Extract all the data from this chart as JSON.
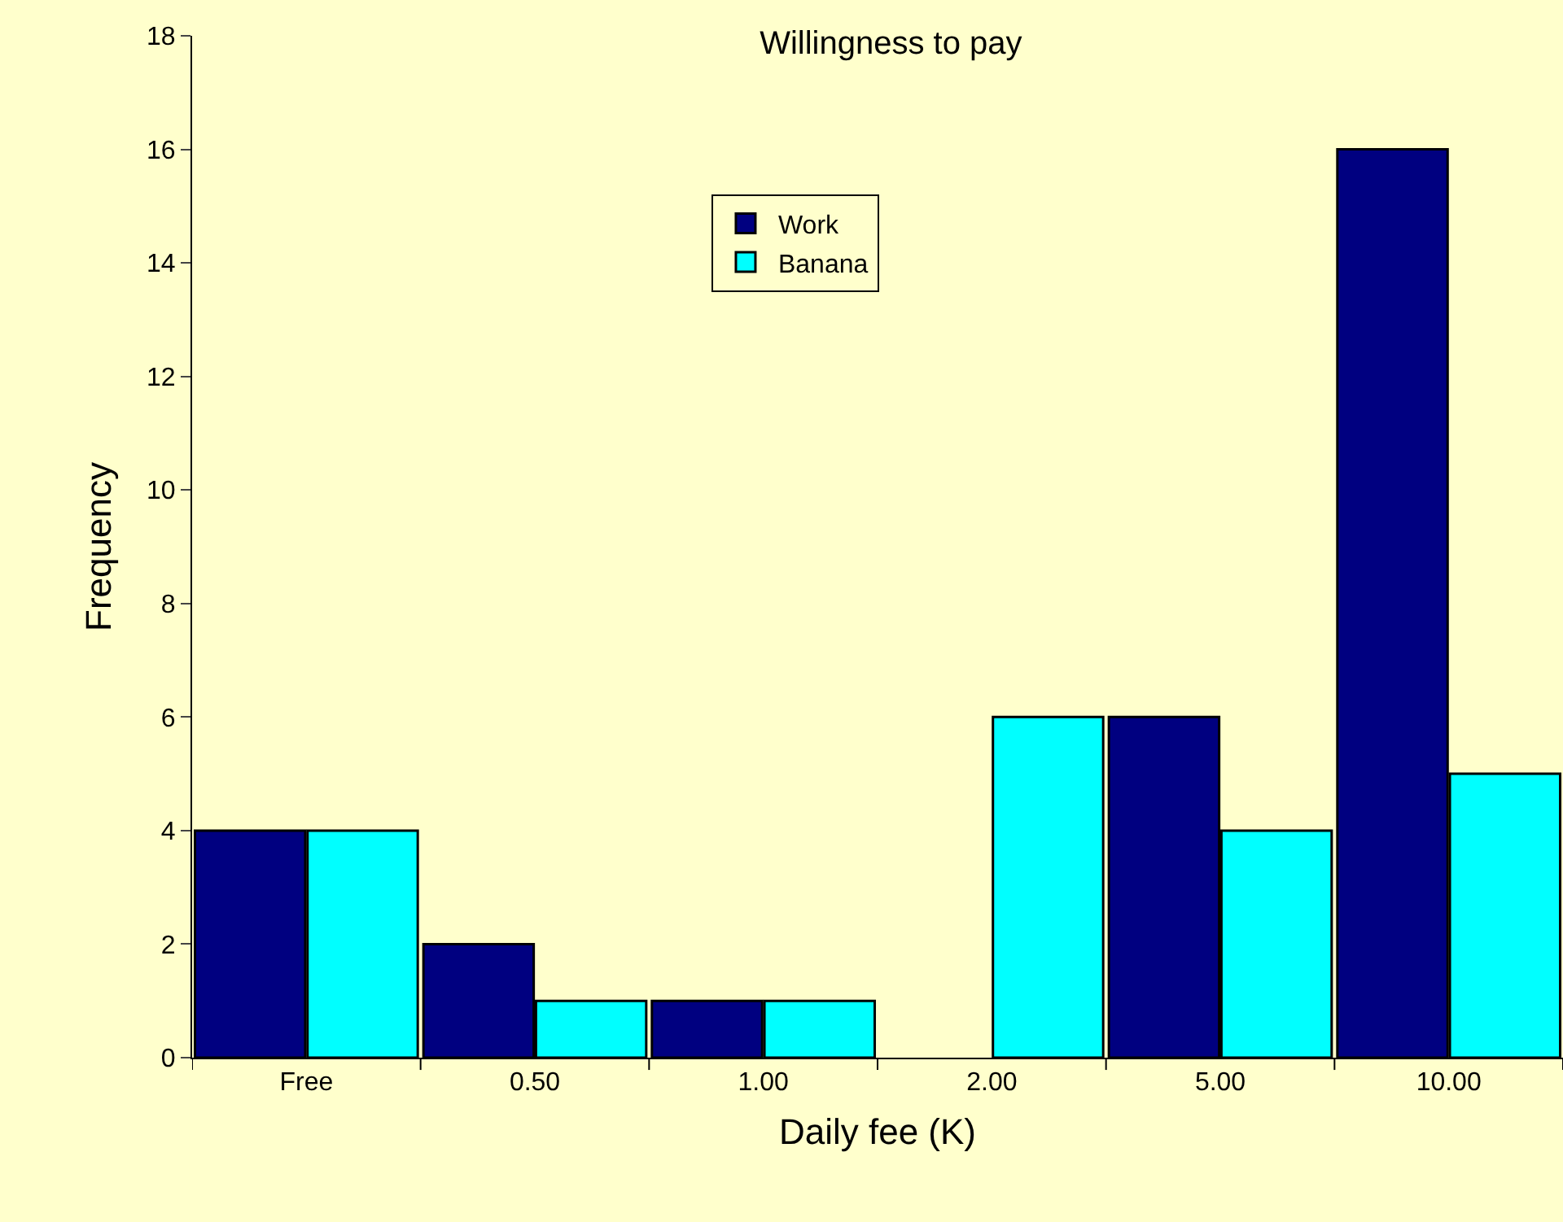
{
  "chart_data": {
    "type": "bar",
    "title": "Willingness to pay",
    "xlabel": "Daily fee (K)",
    "ylabel": "Frequency",
    "categories": [
      "Free",
      "0.50",
      "1.00",
      "2.00",
      "5.00",
      "10.00"
    ],
    "series": [
      {
        "name": "Work",
        "color": "#000080",
        "values": [
          4,
          2,
          1,
          0,
          6,
          16
        ]
      },
      {
        "name": "Banana",
        "color": "#00ffff",
        "values": [
          4,
          1,
          1,
          6,
          4,
          5
        ]
      }
    ],
    "ylim": [
      0,
      18
    ],
    "yticks": [
      0,
      2,
      4,
      6,
      8,
      10,
      12,
      14,
      16,
      18
    ],
    "legend": "top"
  }
}
